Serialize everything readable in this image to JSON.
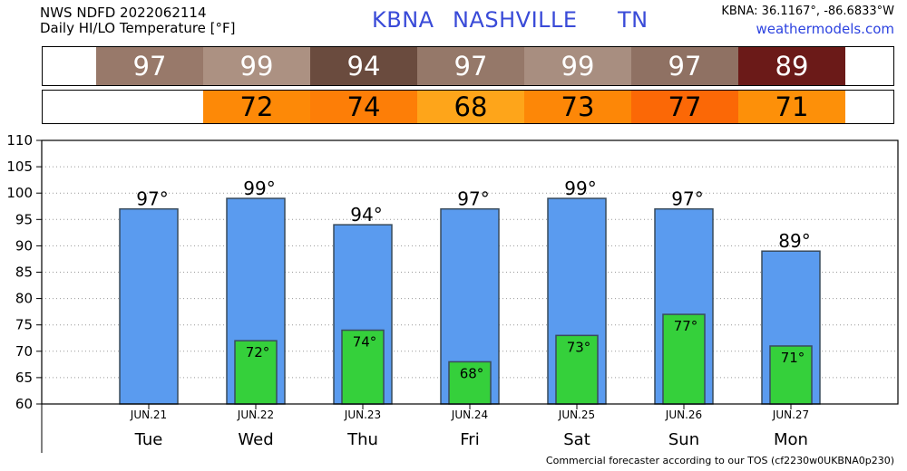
{
  "header": {
    "line1": "NWS NDFD 2022062114",
    "line2": "Daily HI/LO Temperature [°F]",
    "station": "KBNA",
    "city": "NASHVILLE",
    "state": "TN",
    "coords": "KBNA: 36.1167°, -86.6833°W",
    "site": "weathermodels.com"
  },
  "strip_hi": {
    "values": [
      "97",
      "99",
      "94",
      "97",
      "99",
      "97",
      "89"
    ],
    "colors": [
      "#98796a",
      "#ac9182",
      "#6a4b3e",
      "#957869",
      "#a88e80",
      "#8f7163",
      "#6b1a18"
    ]
  },
  "strip_lo": {
    "values": [
      "72",
      "74",
      "68",
      "73",
      "77",
      "71"
    ],
    "colors": [
      "#fd8907",
      "#fd7e07",
      "#fea51a",
      "#fd8707",
      "#fb6806",
      "#fd9009"
    ]
  },
  "colors": {
    "hi_bar": "#5a9bef",
    "lo_bar": "#35d03b",
    "bar_outline": "#394b5c",
    "grid": "#999999"
  },
  "chart_data": {
    "type": "bar",
    "categories": [
      "Tue",
      "Wed",
      "Thu",
      "Fri",
      "Sat",
      "Sun",
      "Mon"
    ],
    "dates": [
      "JUN.21",
      "JUN.22",
      "JUN.23",
      "JUN.24",
      "JUN.25",
      "JUN.26",
      "JUN.27"
    ],
    "series": [
      {
        "values": [
          97,
          99,
          94,
          97,
          99,
          97,
          89
        ],
        "labels": [
          "97°",
          "99°",
          "94°",
          "97°",
          "99°",
          "97°",
          "89°"
        ]
      },
      {
        "values": [
          null,
          72,
          74,
          68,
          73,
          77,
          71
        ],
        "labels": [
          "",
          "72°",
          "74°",
          "68°",
          "73°",
          "77°",
          "71°"
        ]
      }
    ],
    "ylim": [
      60,
      110
    ],
    "yticks": [
      60,
      65,
      70,
      75,
      80,
      85,
      90,
      95,
      100,
      105,
      110
    ],
    "grid": true
  },
  "footer": "Commercial forecaster according to our TOS (cf2230w0UKBNA0p230)"
}
